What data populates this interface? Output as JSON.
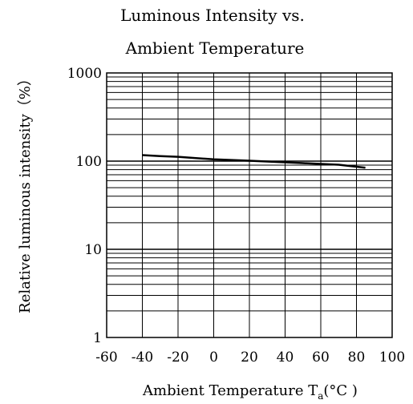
{
  "chart_data": {
    "type": "line",
    "title_line1": "Luminous Intensity vs.",
    "title_line2": "Ambient Temperature",
    "xlabel": "Ambient Temperature T",
    "xlabel_sub": "a",
    "xlabel_unit": "(°C )",
    "ylabel": "Relative luminous intensity（%）",
    "x_ticks": [
      "-60",
      "-40",
      "-20",
      "0",
      "20",
      "40",
      "60",
      "80",
      "100"
    ],
    "y_ticks": [
      "1",
      "10",
      "100",
      "1000"
    ],
    "xlim": [
      -60,
      100
    ],
    "ylim": [
      1,
      1000
    ],
    "y_scale": "log",
    "grid": true,
    "series": [
      {
        "x": [
          -40,
          -30,
          -20,
          -10,
          0,
          10,
          20,
          30,
          40,
          50,
          60,
          70,
          85
        ],
        "y": [
          117,
          114,
          112,
          108,
          105,
          103,
          101,
          99,
          97,
          95,
          93,
          91,
          84
        ]
      }
    ]
  }
}
